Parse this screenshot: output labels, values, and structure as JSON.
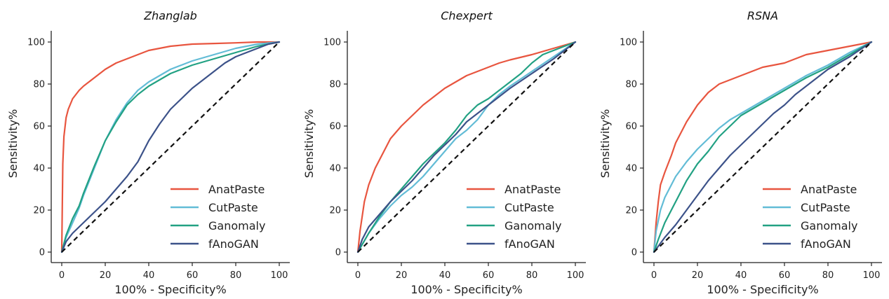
{
  "chart_data": [
    {
      "type": "line",
      "title": "Zhanglab",
      "xlabel": "100% - Specificity%",
      "ylabel": "Sensitivity%",
      "xlim": [
        0,
        100
      ],
      "ylim": [
        0,
        100
      ],
      "xticks": [
        0,
        20,
        40,
        60,
        80,
        100
      ],
      "yticks": [
        0,
        20,
        40,
        60,
        80,
        100
      ],
      "legend": "bottom-right",
      "diagonal": "dashed",
      "series": [
        {
          "name": "AnatPaste",
          "color": "#e8553f",
          "x": [
            0,
            0.5,
            1,
            2,
            3,
            5,
            8,
            10,
            15,
            20,
            25,
            30,
            35,
            40,
            45,
            50,
            55,
            60,
            70,
            80,
            90,
            100
          ],
          "y": [
            0,
            42,
            55,
            64,
            68,
            73,
            77,
            79,
            83,
            87,
            90,
            92,
            94,
            96,
            97,
            98,
            98.5,
            99,
            99.3,
            99.6,
            100,
            100
          ]
        },
        {
          "name": "CutPaste",
          "color": "#62bcd6",
          "x": [
            0,
            2,
            5,
            8,
            10,
            15,
            20,
            25,
            30,
            35,
            40,
            45,
            50,
            55,
            60,
            70,
            80,
            90,
            100
          ],
          "y": [
            0,
            7,
            14,
            21,
            27,
            40,
            53,
            63,
            71,
            77,
            81,
            84,
            87,
            89,
            91,
            94,
            97,
            99,
            100
          ]
        },
        {
          "name": "Ganomaly",
          "color": "#22a183",
          "x": [
            0,
            2,
            5,
            8,
            10,
            15,
            20,
            25,
            30,
            35,
            40,
            45,
            50,
            55,
            60,
            70,
            80,
            90,
            100
          ],
          "y": [
            0,
            8,
            16,
            22,
            28,
            41,
            53,
            62,
            70,
            75,
            79,
            82,
            85,
            87,
            89,
            92,
            95,
            98,
            100
          ]
        },
        {
          "name": "fAnoGAN",
          "color": "#3c5289",
          "x": [
            0,
            2,
            5,
            10,
            15,
            20,
            25,
            30,
            35,
            40,
            45,
            50,
            55,
            60,
            65,
            70,
            75,
            80,
            85,
            90,
            95,
            100
          ],
          "y": [
            0,
            5,
            9,
            14,
            19,
            24,
            30,
            36,
            43,
            53,
            61,
            68,
            73,
            78,
            82,
            86,
            90,
            93,
            95,
            97,
            99,
            100
          ]
        }
      ]
    },
    {
      "type": "line",
      "title": "Chexpert",
      "xlabel": "100% - Specificity%",
      "ylabel": "Sensitivity%",
      "xlim": [
        0,
        100
      ],
      "ylim": [
        0,
        100
      ],
      "xticks": [
        0,
        20,
        40,
        60,
        80,
        100
      ],
      "yticks": [
        0,
        20,
        40,
        60,
        80,
        100
      ],
      "legend": "bottom-right",
      "diagonal": "dashed",
      "series": [
        {
          "name": "AnatPaste",
          "color": "#e8553f",
          "x": [
            0,
            1,
            3,
            5,
            8,
            10,
            15,
            20,
            25,
            30,
            35,
            40,
            45,
            50,
            55,
            60,
            65,
            70,
            80,
            90,
            100
          ],
          "y": [
            0,
            10,
            24,
            32,
            40,
            44,
            54,
            60,
            65,
            70,
            74,
            78,
            81,
            84,
            86,
            88,
            90,
            91.5,
            94,
            97,
            100
          ]
        },
        {
          "name": "CutPaste",
          "color": "#62bcd6",
          "x": [
            0,
            5,
            10,
            15,
            20,
            25,
            30,
            35,
            40,
            45,
            50,
            55,
            60,
            65,
            70,
            80,
            90,
            100
          ],
          "y": [
            0,
            9,
            16,
            22,
            27,
            31,
            36,
            42,
            48,
            54,
            58,
            63,
            70,
            75,
            79,
            86,
            93,
            100
          ]
        },
        {
          "name": "Ganomaly",
          "color": "#22a183",
          "x": [
            0,
            5,
            10,
            15,
            20,
            25,
            30,
            35,
            40,
            45,
            50,
            55,
            60,
            65,
            70,
            75,
            80,
            85,
            90,
            100
          ],
          "y": [
            0,
            9,
            17,
            24,
            30,
            36,
            42,
            47,
            52,
            58,
            65,
            70,
            73,
            77,
            81,
            85,
            90,
            94,
            96,
            100
          ]
        },
        {
          "name": "fAnoGAN",
          "color": "#3c5289",
          "x": [
            0,
            2,
            5,
            10,
            15,
            20,
            25,
            30,
            35,
            40,
            45,
            50,
            55,
            60,
            65,
            70,
            80,
            90,
            100
          ],
          "y": [
            0,
            6,
            12,
            18,
            24,
            29,
            34,
            40,
            46,
            51,
            56,
            62,
            66,
            70,
            74,
            78,
            85,
            92,
            100
          ]
        }
      ]
    },
    {
      "type": "line",
      "title": "RSNA",
      "xlabel": "100% - Specificity%",
      "ylabel": "Sensitivity%",
      "xlim": [
        0,
        100
      ],
      "ylim": [
        0,
        100
      ],
      "xticks": [
        0,
        20,
        40,
        60,
        80,
        100
      ],
      "yticks": [
        0,
        20,
        40,
        60,
        80,
        100
      ],
      "legend": "bottom-right",
      "diagonal": "dashed",
      "series": [
        {
          "name": "AnatPaste",
          "color": "#e8553f",
          "x": [
            0,
            1,
            2,
            3,
            5,
            8,
            10,
            15,
            20,
            25,
            30,
            35,
            40,
            45,
            50,
            55,
            60,
            65,
            70,
            80,
            90,
            100
          ],
          "y": [
            0,
            14,
            24,
            32,
            38,
            46,
            52,
            62,
            70,
            76,
            80,
            82,
            84,
            86,
            88,
            89,
            90,
            92,
            94,
            96,
            98,
            100
          ]
        },
        {
          "name": "CutPaste",
          "color": "#62bcd6",
          "x": [
            0,
            1,
            3,
            5,
            10,
            15,
            20,
            25,
            30,
            35,
            40,
            45,
            50,
            55,
            60,
            65,
            70,
            80,
            90,
            100
          ],
          "y": [
            0,
            10,
            20,
            26,
            36,
            43,
            49,
            54,
            59,
            63,
            66,
            69,
            72,
            75,
            78,
            81,
            84,
            89,
            95,
            100
          ]
        },
        {
          "name": "Ganomaly",
          "color": "#22a183",
          "x": [
            0,
            2,
            5,
            10,
            15,
            20,
            25,
            30,
            35,
            40,
            45,
            50,
            55,
            60,
            65,
            70,
            80,
            90,
            100
          ],
          "y": [
            0,
            6,
            14,
            24,
            34,
            42,
            48,
            55,
            60,
            65,
            68,
            71,
            74,
            77,
            80,
            83,
            88,
            94,
            100
          ]
        },
        {
          "name": "fAnoGAN",
          "color": "#3c5289",
          "x": [
            0,
            5,
            10,
            15,
            20,
            25,
            30,
            35,
            40,
            45,
            50,
            55,
            60,
            65,
            70,
            75,
            80,
            90,
            100
          ],
          "y": [
            0,
            7,
            13,
            20,
            27,
            34,
            40,
            46,
            51,
            56,
            61,
            66,
            70,
            75,
            79,
            83,
            87,
            93,
            100
          ]
        }
      ]
    }
  ]
}
